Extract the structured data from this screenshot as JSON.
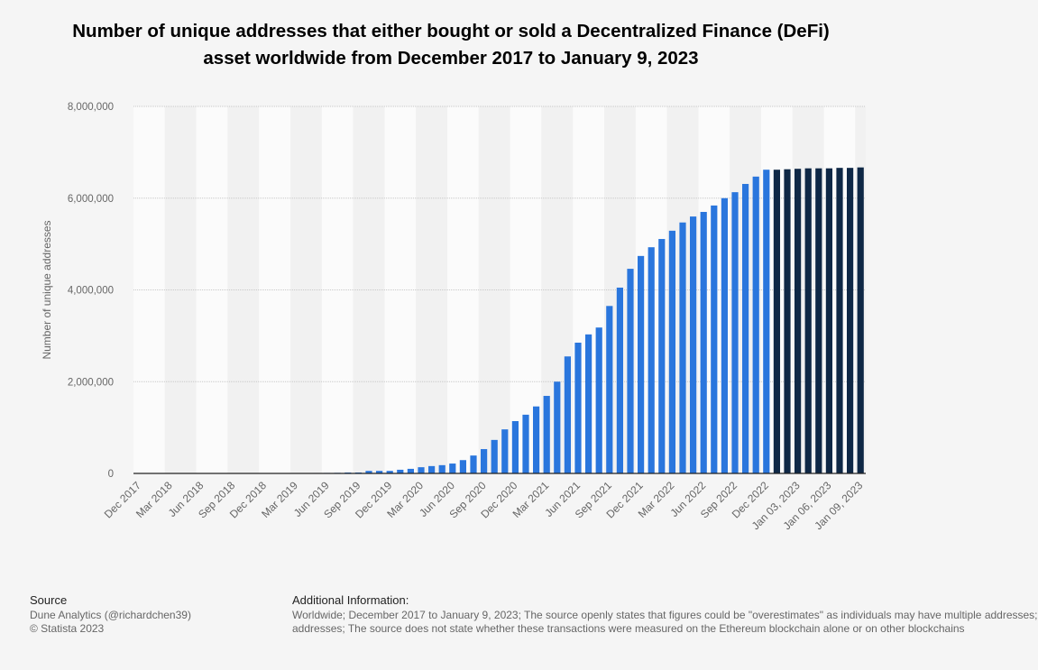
{
  "chart_data": {
    "type": "bar",
    "title": "Number of unique addresses that either bought or sold a Decentralized Finance (DeFi) asset worldwide from December 2017 to January 9, 2023",
    "xlabel": "",
    "ylabel": "Number of unique addresses",
    "ylim": [
      0,
      8000000
    ],
    "yticks": [
      0,
      2000000,
      4000000,
      6000000,
      8000000
    ],
    "ytick_labels": [
      "0",
      "2,000,000",
      "4,000,000",
      "6,000,000",
      "8,000,000"
    ],
    "grid": true,
    "categories": [
      "Dec 2017",
      "Jan 2018",
      "Feb 2018",
      "Mar 2018",
      "Apr 2018",
      "May 2018",
      "Jun 2018",
      "Jul 2018",
      "Aug 2018",
      "Sep 2018",
      "Oct 2018",
      "Nov 2018",
      "Dec 2018",
      "Jan 2019",
      "Feb 2019",
      "Mar 2019",
      "Apr 2019",
      "May 2019",
      "Jun 2019",
      "Jul 2019",
      "Aug 2019",
      "Sep 2019",
      "Oct 2019",
      "Nov 2019",
      "Dec 2019",
      "Jan 2020",
      "Feb 2020",
      "Mar 2020",
      "Apr 2020",
      "May 2020",
      "Jun 2020",
      "Jul 2020",
      "Aug 2020",
      "Sep 2020",
      "Oct 2020",
      "Nov 2020",
      "Dec 2020",
      "Jan 2021",
      "Feb 2021",
      "Mar 2021",
      "Apr 2021",
      "May 2021",
      "Jun 2021",
      "Jul 2021",
      "Aug 2021",
      "Sep 2021",
      "Oct 2021",
      "Nov 2021",
      "Dec 2021",
      "Jan 2022",
      "Feb 2022",
      "Mar 2022",
      "Apr 2022",
      "May 2022",
      "Jun 2022",
      "Jul 2022",
      "Aug 2022",
      "Sep 2022",
      "Oct 2022",
      "Nov 2022",
      "Dec 2022",
      "Jan 01, 2023",
      "Jan 02, 2023",
      "Jan 03, 2023",
      "Jan 04, 2023",
      "Jan 05, 2023",
      "Jan 06, 2023",
      "Jan 07, 2023",
      "Jan 08, 2023",
      "Jan 09, 2023"
    ],
    "xtick_labels": [
      "Dec 2017",
      "Mar 2018",
      "Jun 2018",
      "Sep 2018",
      "Dec 2018",
      "Mar 2019",
      "Jun 2019",
      "Sep 2019",
      "Dec 2019",
      "Mar 2020",
      "Jun 2020",
      "Sep 2020",
      "Dec 2020",
      "Mar 2021",
      "Jun 2021",
      "Sep 2021",
      "Dec 2021",
      "Mar 2022",
      "Jun 2022",
      "Sep 2022",
      "Dec 2022",
      "Jan 03, 2023",
      "Jan 06, 2023",
      "Jan 09, 2023"
    ],
    "values": [
      1000,
      1500,
      2000,
      2500,
      3000,
      3500,
      4000,
      4500,
      5000,
      5500,
      6000,
      6500,
      7000,
      7500,
      8000,
      8500,
      9000,
      10000,
      11000,
      13000,
      20000,
      20000,
      55000,
      55000,
      55000,
      80000,
      100000,
      135000,
      160000,
      180000,
      215000,
      290000,
      390000,
      530000,
      730000,
      960000,
      1140000,
      1280000,
      1460000,
      1690000,
      2000000,
      2550000,
      2850000,
      3030000,
      3180000,
      3650000,
      4050000,
      4460000,
      4740000,
      4930000,
      5110000,
      5290000,
      5470000,
      5600000,
      5700000,
      5840000,
      6000000,
      6130000,
      6310000,
      6470000,
      6620000,
      6620000,
      6630000,
      6640000,
      6650000,
      6650000,
      6650000,
      6660000,
      6660000,
      6670000
    ],
    "colors": {
      "monthly": "#2a76dd",
      "daily": "#0f2846"
    }
  },
  "footer": {
    "source_heading": "Source",
    "source_lines": [
      "Dune Analytics (@richardchen39)",
      "© Statista 2023"
    ],
    "additional_heading": "Additional Information:",
    "additional_lines": [
      "Worldwide; December 2017 to January 9, 2023; The source openly states that figures could be \"overestimates\" as individuals may have multiple addresses;",
      "addresses; The source does not state whether these transactions were measured on the Ethereum blockchain alone or on other blockchains"
    ]
  }
}
